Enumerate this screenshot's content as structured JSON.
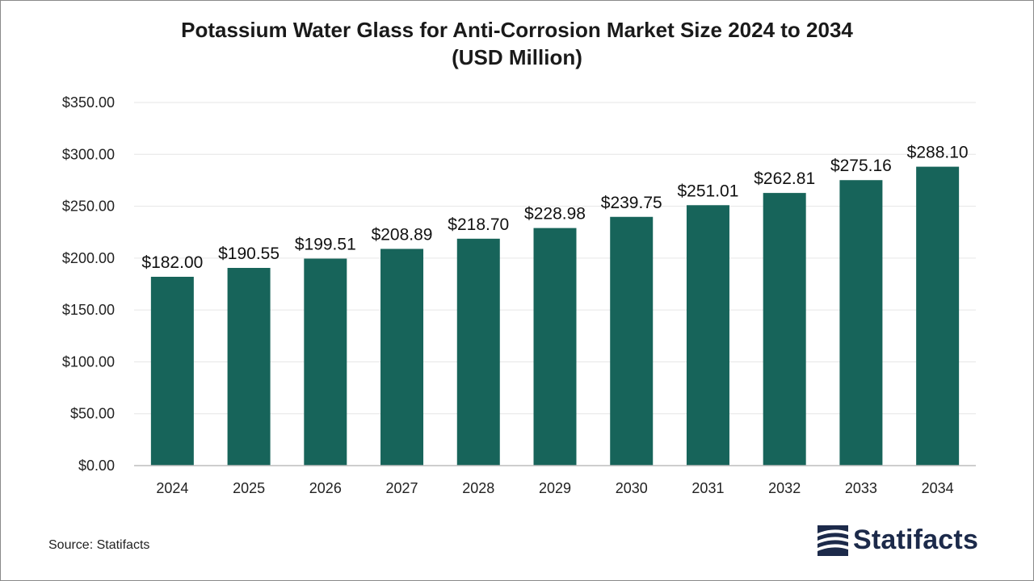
{
  "title_line1": "Potassium Water Glass for Anti-Corrosion Market Size 2024 to 2034",
  "title_line2": "(USD Million)",
  "source": "Source: Statifacts",
  "brand": "Statifacts",
  "colors": {
    "bar": "#17645a",
    "grid": "#e6e6e6",
    "axis": "#bdbdbd",
    "brand": "#1c2a4a"
  },
  "chart_data": {
    "type": "bar",
    "categories": [
      "2024",
      "2025",
      "2026",
      "2027",
      "2028",
      "2029",
      "2030",
      "2031",
      "2032",
      "2033",
      "2034"
    ],
    "values": [
      182.0,
      190.55,
      199.51,
      208.89,
      218.7,
      228.98,
      239.75,
      251.01,
      262.81,
      275.16,
      288.1
    ],
    "value_labels": [
      "$182.00",
      "$190.55",
      "$199.51",
      "$208.89",
      "$218.70",
      "$228.98",
      "$239.75",
      "$251.01",
      "$262.81",
      "$275.16",
      "$288.10"
    ],
    "ylim": [
      0,
      350
    ],
    "yticks": [
      0,
      50,
      100,
      150,
      200,
      250,
      300,
      350
    ],
    "ytick_labels": [
      "$0.00",
      "$50.00",
      "$100.00",
      "$150.00",
      "$200.00",
      "$250.00",
      "$300.00",
      "$350.00"
    ],
    "grid": true,
    "legend": "none"
  }
}
